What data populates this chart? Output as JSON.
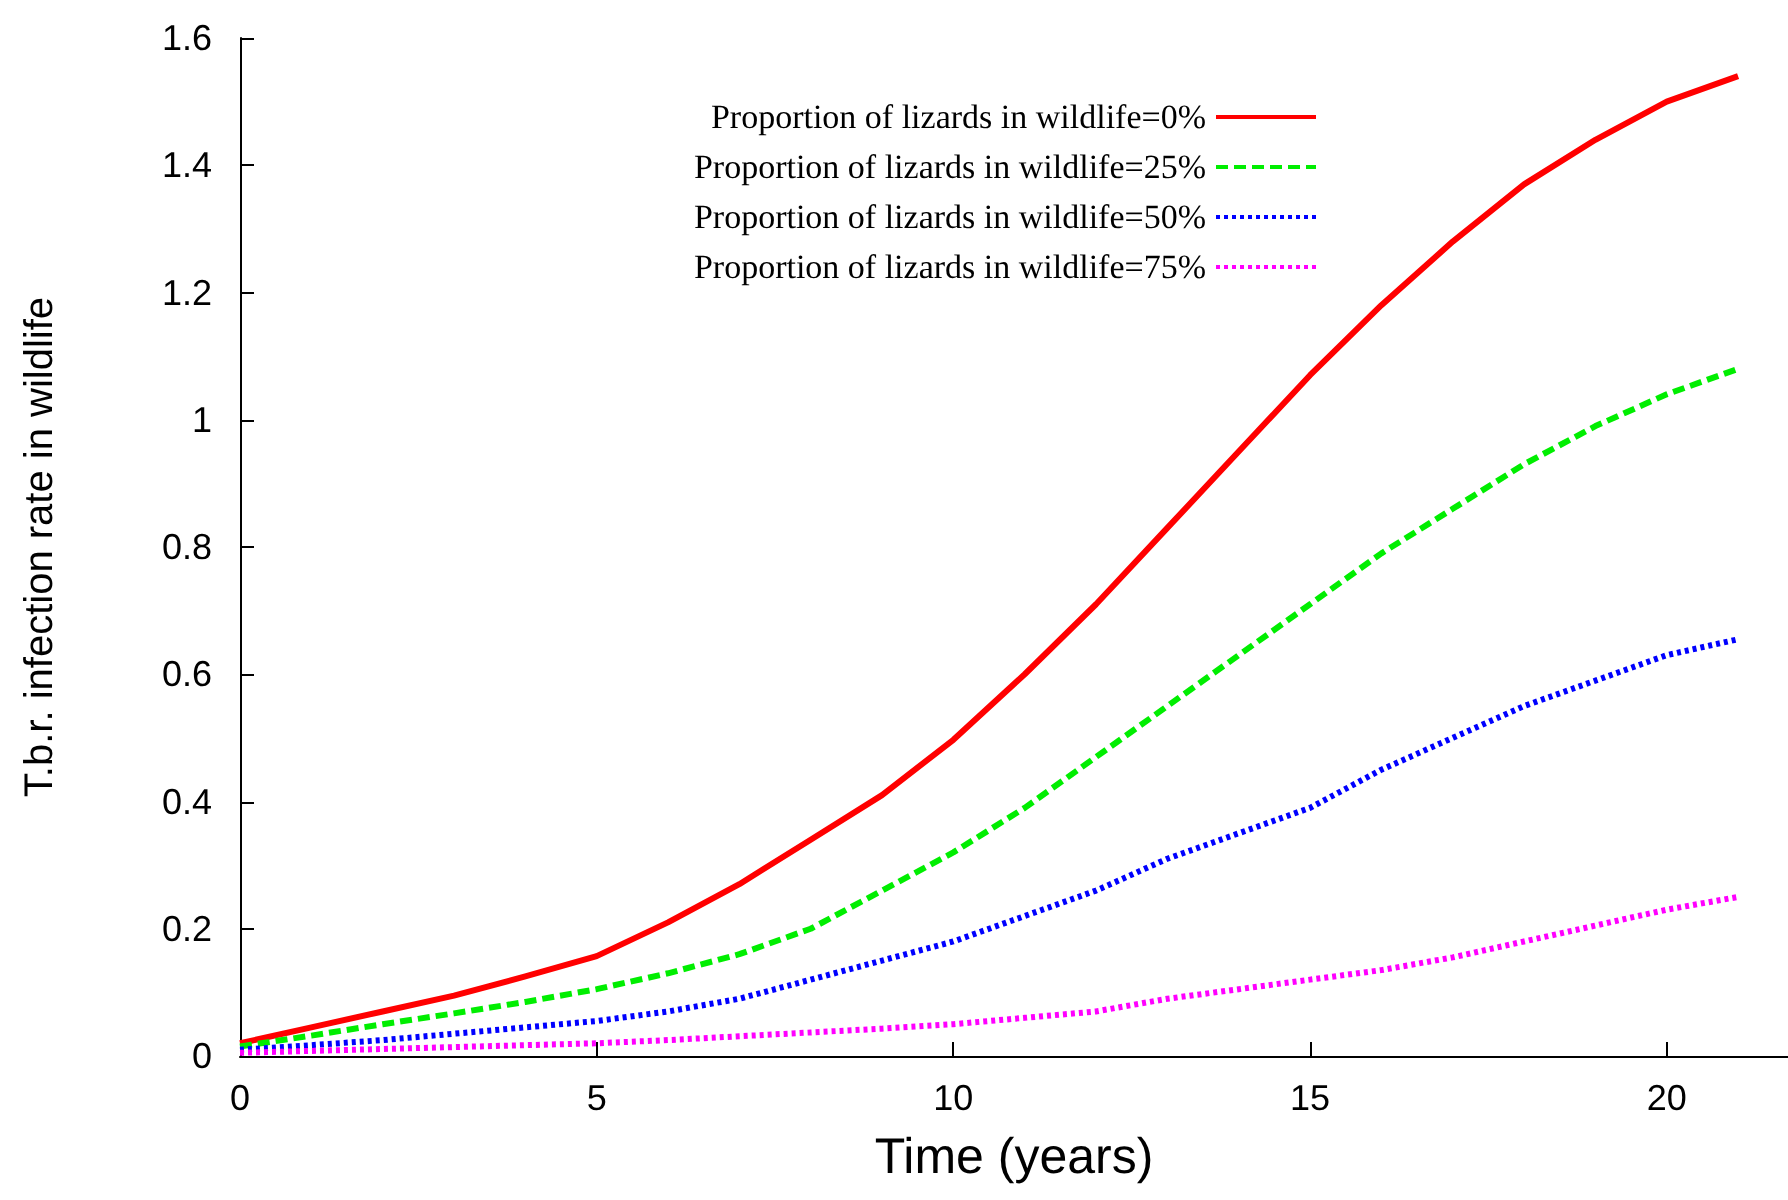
{
  "chart_data": {
    "type": "line",
    "xlabel": "Time (years)",
    "ylabel": "T.b.r. infection rate in wildlife",
    "x": [
      0,
      1,
      2,
      3,
      4,
      5,
      6,
      7,
      8,
      9,
      10,
      11,
      12,
      13,
      14,
      15,
      16,
      17,
      18,
      19,
      20,
      21
    ],
    "series": [
      {
        "name": "Proportion of lizards in wildlife=0%",
        "color": "#ff0000",
        "line_style": "solid",
        "values": [
          0.02,
          0.045,
          0.07,
          0.095,
          0.125,
          0.157,
          0.21,
          0.27,
          0.34,
          0.41,
          0.497,
          0.6,
          0.71,
          0.83,
          0.95,
          1.07,
          1.18,
          1.28,
          1.37,
          1.44,
          1.5,
          1.54
        ]
      },
      {
        "name": "Proportion of lizards in wildlife=25%",
        "color": "#00ee00",
        "line_style": "dashed",
        "values": [
          0.015,
          0.032,
          0.05,
          0.067,
          0.085,
          0.105,
          0.13,
          0.16,
          0.2,
          0.26,
          0.32,
          0.39,
          0.47,
          0.55,
          0.63,
          0.71,
          0.79,
          0.86,
          0.93,
          0.99,
          1.04,
          1.08
        ]
      },
      {
        "name": "Proportion of lizards in wildlife=50%",
        "color": "#0000ff",
        "line_style": "dotted",
        "values": [
          0.01,
          0.017,
          0.025,
          0.035,
          0.045,
          0.055,
          0.07,
          0.09,
          0.12,
          0.15,
          0.18,
          0.22,
          0.26,
          0.31,
          0.35,
          0.39,
          0.45,
          0.5,
          0.55,
          0.59,
          0.63,
          0.655
        ]
      },
      {
        "name": "Proportion of lizards in wildlife=75%",
        "color": "#ff00ff",
        "line_style": "dotted",
        "values": [
          0.005,
          0.008,
          0.011,
          0.014,
          0.017,
          0.02,
          0.025,
          0.031,
          0.037,
          0.043,
          0.05,
          0.06,
          0.07,
          0.09,
          0.105,
          0.12,
          0.135,
          0.155,
          0.18,
          0.205,
          0.23,
          0.25
        ]
      }
    ],
    "xlim": [
      0,
      21.7
    ],
    "xticks": [
      0,
      5,
      10,
      15,
      20
    ],
    "ylim": [
      0,
      1.6
    ],
    "yticks": [
      0,
      0.2,
      0.4,
      0.6,
      0.8,
      1,
      1.2,
      1.4,
      1.6
    ],
    "grid": false,
    "legend": "top right",
    "marker": "none"
  }
}
